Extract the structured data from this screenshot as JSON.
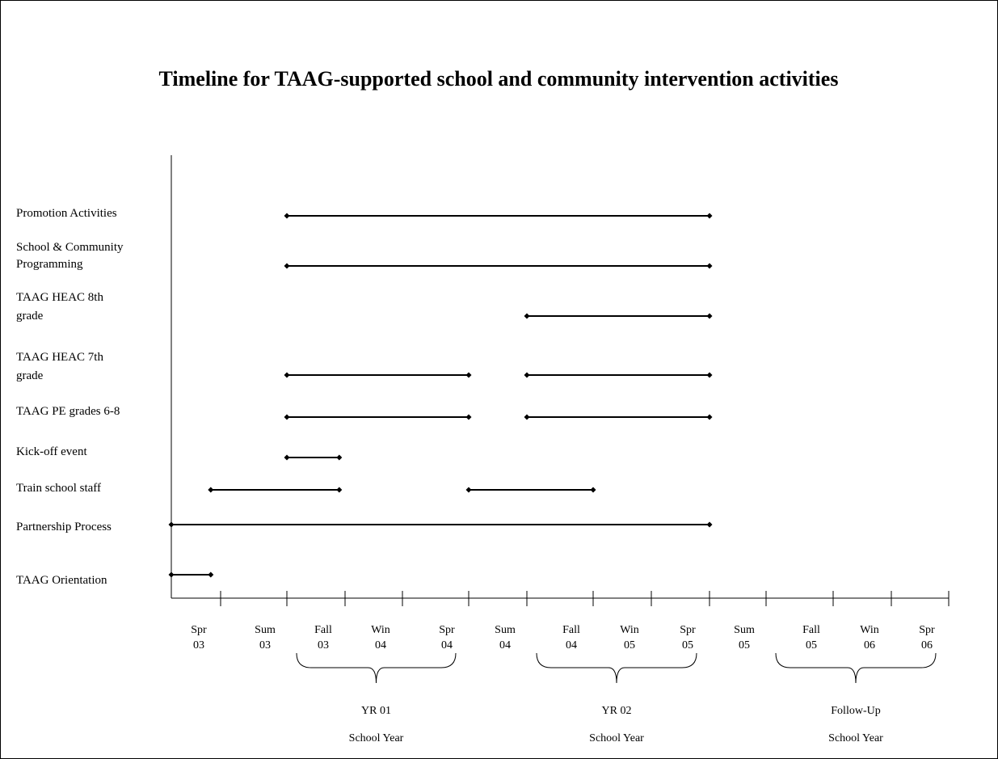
{
  "chart_data": {
    "type": "timeline",
    "title": "Timeline for TAAG-supported school and community intervention activities",
    "periods": [
      {
        "season": "Spr",
        "year": "03"
      },
      {
        "season": "Sum",
        "year": "03"
      },
      {
        "season": "Fall",
        "year": "03"
      },
      {
        "season": "Win",
        "year": "04"
      },
      {
        "season": "Spr",
        "year": "04"
      },
      {
        "season": "Sum",
        "year": "04"
      },
      {
        "season": "Fall",
        "year": "04"
      },
      {
        "season": "Win",
        "year": "05"
      },
      {
        "season": "Spr",
        "year": "05"
      },
      {
        "season": "Sum",
        "year": "05"
      },
      {
        "season": "Fall",
        "year": "05"
      },
      {
        "season": "Win",
        "year": "06"
      },
      {
        "season": "Spr",
        "year": "06"
      }
    ],
    "activities": [
      {
        "label": [
          "Promotion Activities"
        ],
        "segments": [
          [
            2,
            9
          ]
        ]
      },
      {
        "label": [
          "School & Community",
          "Programming"
        ],
        "segments": [
          [
            2,
            9
          ]
        ]
      },
      {
        "label": [
          "TAAG HEAC 8th",
          "grade"
        ],
        "segments": [
          [
            6,
            9
          ]
        ]
      },
      {
        "label": [
          "TAAG HEAC 7th",
          "grade"
        ],
        "segments": [
          [
            2,
            5
          ],
          [
            6,
            9
          ]
        ]
      },
      {
        "label": [
          "TAAG PE grades 6-8"
        ],
        "segments": [
          [
            2,
            5
          ],
          [
            6,
            9
          ]
        ]
      },
      {
        "label": [
          "Kick-off event"
        ],
        "segments": [
          [
            2,
            2.9
          ]
        ]
      },
      {
        "label": [
          "Train school staff"
        ],
        "segments": [
          [
            0.8,
            2.9
          ],
          [
            5,
            7
          ]
        ]
      },
      {
        "label": [
          "Partnership Process"
        ],
        "segments": [
          [
            0,
            9
          ]
        ]
      },
      {
        "label": [
          "TAAG Orientation"
        ],
        "segments": [
          [
            0,
            0.8
          ]
        ]
      }
    ],
    "school_years": [
      {
        "line1": "YR 01",
        "line2": "School Year",
        "start_period": 2,
        "end_period": 4
      },
      {
        "line1": "YR 02",
        "line2": "School Year",
        "start_period": 6,
        "end_period": 8
      },
      {
        "line1": "Follow-Up",
        "line2": "School Year",
        "start_period": 10,
        "end_period": 12
      }
    ]
  }
}
